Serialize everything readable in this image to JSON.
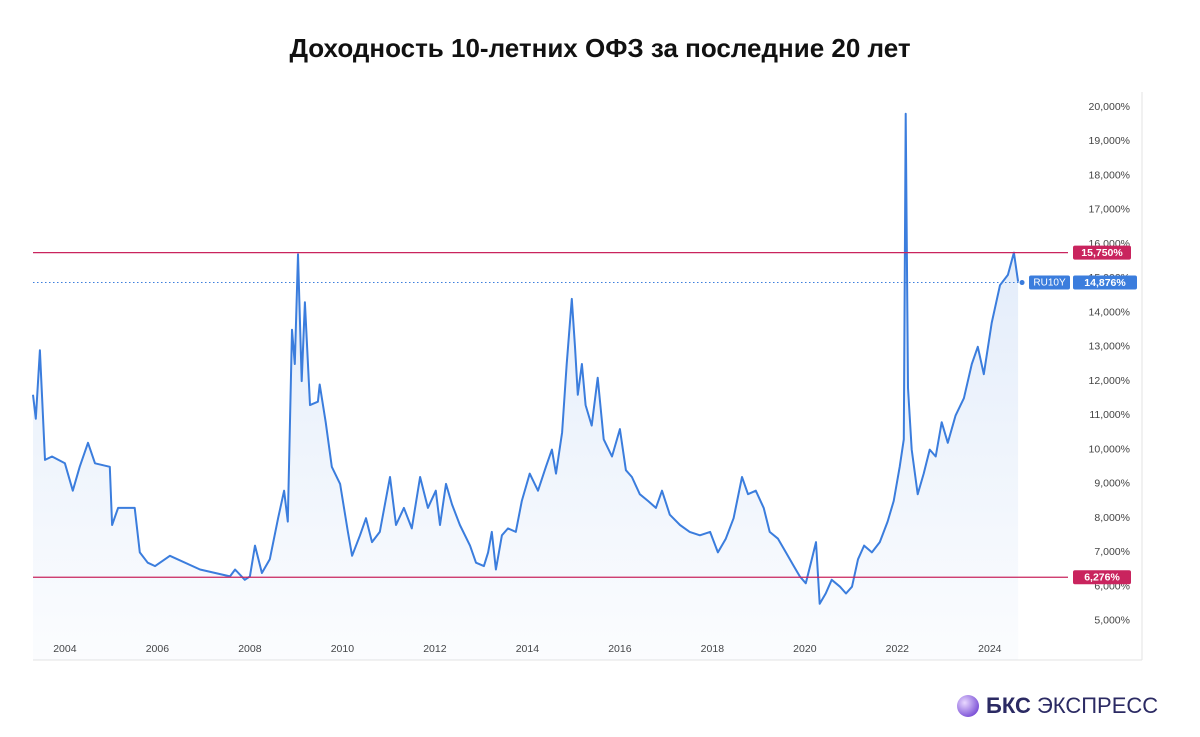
{
  "chart_data": {
    "type": "line",
    "title": "Доходность 10-летних ОФЗ за последние 20 лет",
    "x": [
      2003.31,
      2003.37,
      2003.46,
      2003.57,
      2003.72,
      2004.0,
      2004.17,
      2004.32,
      2004.5,
      2004.65,
      2004.97,
      2005.02,
      2005.15,
      2005.51,
      2005.62,
      2005.79,
      2005.95,
      2006.27,
      2006.92,
      2007.57,
      2007.68,
      2007.89,
      2008.0,
      2008.11,
      2008.26,
      2008.43,
      2008.61,
      2008.74,
      2008.82,
      2008.91,
      2008.97,
      2009.04,
      2009.12,
      2009.19,
      2009.3,
      2009.47,
      2009.51,
      2009.64,
      2009.77,
      2009.95,
      2010.12,
      2010.21,
      2010.38,
      2010.51,
      2010.64,
      2010.81,
      2011.03,
      2011.16,
      2011.33,
      2011.5,
      2011.68,
      2011.85,
      2012.02,
      2012.11,
      2012.24,
      2012.37,
      2012.54,
      2012.76,
      2012.89,
      2013.06,
      2013.15,
      2013.23,
      2013.32,
      2013.45,
      2013.58,
      2013.75,
      2013.88,
      2014.05,
      2014.23,
      2014.4,
      2014.53,
      2014.62,
      2014.75,
      2014.85,
      2014.96,
      2015.03,
      2015.09,
      2015.18,
      2015.26,
      2015.39,
      2015.52,
      2015.65,
      2015.83,
      2016.0,
      2016.13,
      2016.26,
      2016.43,
      2016.61,
      2016.78,
      2016.91,
      2017.08,
      2017.3,
      2017.51,
      2017.73,
      2017.95,
      2018.12,
      2018.29,
      2018.46,
      2018.64,
      2018.77,
      2018.94,
      2019.11,
      2019.24,
      2019.42,
      2019.59,
      2019.76,
      2019.89,
      2020.02,
      2020.15,
      2020.24,
      2020.32,
      2020.45,
      2020.58,
      2020.76,
      2020.89,
      2021.02,
      2021.15,
      2021.28,
      2021.45,
      2021.62,
      2021.79,
      2021.92,
      2022.05,
      2022.14,
      2022.18,
      2022.23,
      2022.31,
      2022.44,
      2022.57,
      2022.7,
      2022.83,
      2022.96,
      2023.09,
      2023.26,
      2023.44,
      2023.61,
      2023.74,
      2023.87,
      2024.04,
      2024.22,
      2024.39,
      2024.52,
      2024.61
    ],
    "series": [
      {
        "name": "RU10Y",
        "color": "#3b7ddd",
        "values": [
          11.6,
          10.9,
          12.9,
          9.7,
          9.8,
          9.6,
          8.8,
          9.5,
          10.2,
          9.6,
          9.5,
          7.8,
          8.3,
          8.3,
          7.0,
          6.7,
          6.6,
          6.9,
          6.5,
          6.3,
          6.5,
          6.2,
          6.3,
          7.2,
          6.4,
          6.8,
          8.0,
          8.8,
          7.9,
          13.5,
          12.5,
          15.7,
          12.0,
          14.3,
          11.3,
          11.4,
          11.9,
          10.8,
          9.5,
          9.0,
          7.6,
          6.9,
          7.5,
          8.0,
          7.3,
          7.6,
          9.2,
          7.8,
          8.3,
          7.7,
          9.2,
          8.3,
          8.8,
          7.8,
          9.0,
          8.4,
          7.8,
          7.2,
          6.7,
          6.6,
          7.0,
          7.6,
          6.5,
          7.5,
          7.7,
          7.6,
          8.5,
          9.3,
          8.8,
          9.5,
          10.0,
          9.3,
          10.5,
          12.5,
          14.4,
          13.0,
          11.6,
          12.5,
          11.3,
          10.7,
          12.1,
          10.3,
          9.8,
          10.6,
          9.4,
          9.2,
          8.7,
          8.5,
          8.3,
          8.8,
          8.1,
          7.8,
          7.6,
          7.5,
          7.6,
          7.0,
          7.4,
          8.0,
          9.2,
          8.7,
          8.8,
          8.3,
          7.6,
          7.4,
          7.0,
          6.6,
          6.3,
          6.1,
          6.8,
          7.3,
          5.5,
          5.8,
          6.2,
          6.0,
          5.8,
          6.0,
          6.8,
          7.2,
          7.0,
          7.3,
          7.9,
          8.5,
          9.5,
          10.3,
          19.8,
          11.8,
          10.0,
          8.7,
          9.3,
          10.0,
          9.8,
          10.8,
          10.2,
          11.0,
          11.5,
          12.5,
          13.0,
          12.2,
          13.7,
          14.8,
          15.1,
          15.75,
          14.9
        ]
      }
    ],
    "xlim": [
      2003.31,
      2025.69
    ],
    "xticks": [
      2004,
      2006,
      2008,
      2010,
      2012,
      2014,
      2016,
      2018,
      2020,
      2022,
      2024
    ],
    "ylim": [
      3.86,
      20.35
    ],
    "yticks": [
      {
        "value": 5,
        "label": "5,000%"
      },
      {
        "value": 6,
        "label": "6,000%"
      },
      {
        "value": 7,
        "label": "7,000%"
      },
      {
        "value": 8,
        "label": "8,000%"
      },
      {
        "value": 9,
        "label": "9,000%"
      },
      {
        "value": 10,
        "label": "10,000%"
      },
      {
        "value": 11,
        "label": "11,000%"
      },
      {
        "value": 12,
        "label": "12,000%"
      },
      {
        "value": 13,
        "label": "13,000%"
      },
      {
        "value": 14,
        "label": "14,000%"
      },
      {
        "value": 15,
        "label": "15,000%"
      },
      {
        "value": 16,
        "label": "16,000%"
      },
      {
        "value": 17,
        "label": "17,000%"
      },
      {
        "value": 18,
        "label": "18,000%"
      },
      {
        "value": 19,
        "label": "19,000%"
      },
      {
        "value": 20,
        "label": "20,000%"
      }
    ],
    "grid": false,
    "marker_lines": [
      {
        "value": 15.75,
        "label": "15,750%",
        "color": "#c9245e"
      },
      {
        "value": 6.276,
        "label": "6,276%",
        "color": "#c9245e"
      }
    ],
    "last_price": {
      "value": 14.876,
      "label": "14,876%"
    }
  },
  "brand": {
    "name": "БКС",
    "product": "ЭКСПРЕСС"
  }
}
